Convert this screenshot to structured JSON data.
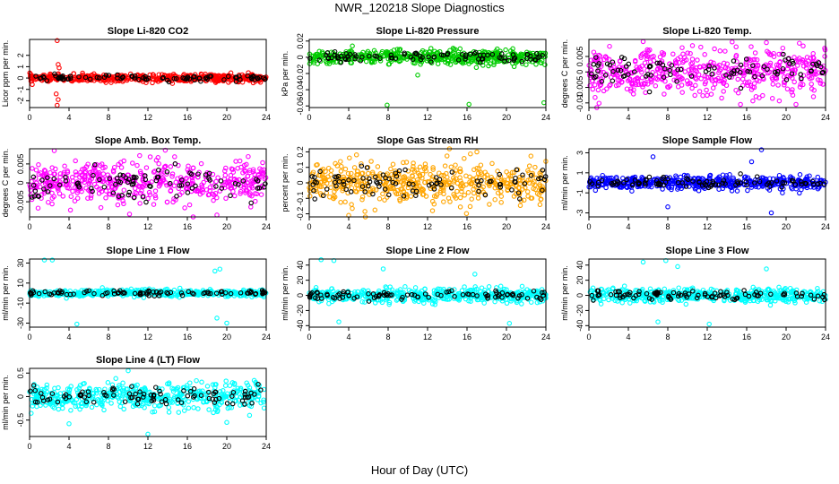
{
  "page": {
    "title": "NWR_120218  Slope Diagnostics",
    "xlabel": "Hour of Day (UTC)"
  },
  "chart_data": [
    {
      "type": "scatter",
      "title": "Slope Li-820 CO2",
      "ylabel": "Licor ppm per min.",
      "color": "#ff0000",
      "xlim": [
        0,
        24
      ],
      "ylim": [
        -2.6,
        3.4
      ],
      "yticks": [
        -2,
        -1,
        0,
        1,
        2
      ],
      "xticks": [
        0,
        4,
        8,
        12,
        16,
        20,
        24
      ],
      "center": 0,
      "spread": 0.3,
      "outliers": [
        [
          2.8,
          3.3
        ],
        [
          2.9,
          1.2
        ],
        [
          3.0,
          0.9
        ],
        [
          2.7,
          -1.4
        ],
        [
          2.8,
          -2.4
        ],
        [
          2.9,
          -1.9
        ]
      ]
    },
    {
      "type": "scatter",
      "title": "Slope Li-820 Pressure",
      "ylabel": "kPa per min.",
      "color": "#00cc00",
      "xlim": [
        0,
        24
      ],
      "ylim": [
        -0.062,
        0.022
      ],
      "yticks": [
        -0.06,
        -0.04,
        -0.02,
        0,
        0.02
      ],
      "xticks": [
        0,
        4,
        8,
        12,
        16,
        20,
        24
      ],
      "center": 0,
      "spread": 0.008,
      "outliers": [
        [
          7.9,
          -0.059
        ],
        [
          16.2,
          -0.058
        ],
        [
          23.8,
          -0.056
        ],
        [
          11.0,
          -0.022
        ]
      ]
    },
    {
      "type": "scatter",
      "title": "Slope Li-820 Temp.",
      "ylabel": "degrees C per min.",
      "color": "#ff00ff",
      "xlim": [
        0,
        24
      ],
      "ylim": [
        -0.0115,
        0.0105
      ],
      "yticks": [
        -0.01,
        -0.005,
        0,
        0.005
      ],
      "xticks": [
        0,
        4,
        8,
        12,
        16,
        20,
        24
      ],
      "center": 0,
      "spread": 0.0065,
      "outliers": [
        [
          5.5,
          0.0098
        ],
        [
          10.5,
          0.0085
        ],
        [
          18.0,
          0.0095
        ],
        [
          21.0,
          -0.0105
        ]
      ]
    },
    {
      "type": "scatter",
      "title": "Slope Amb. Box Temp.",
      "ylabel": "degrees C per min.",
      "color": "#ff00ff",
      "xlim": [
        0,
        24
      ],
      "ylim": [
        -0.009,
        0.009
      ],
      "yticks": [
        -0.005,
        0,
        0.005
      ],
      "xticks": [
        0,
        4,
        8,
        12,
        16,
        20,
        24
      ],
      "center": 0,
      "spread": 0.005,
      "outliers": [
        [
          2.5,
          0.0085
        ],
        [
          19.0,
          -0.0085
        ]
      ]
    },
    {
      "type": "scatter",
      "title": "Slope Gas Stream RH",
      "ylabel": "percent per min.",
      "color": "#ffa500",
      "xlim": [
        0,
        24
      ],
      "ylim": [
        -0.22,
        0.22
      ],
      "yticks": [
        -0.2,
        -0.1,
        0,
        0.1,
        0.2
      ],
      "xticks": [
        0,
        4,
        8,
        12,
        16,
        20,
        24
      ],
      "center": 0,
      "spread": 0.12,
      "outliers": [
        [
          4.0,
          -0.21
        ],
        [
          12.5,
          -0.18
        ],
        [
          17.0,
          0.2
        ]
      ]
    },
    {
      "type": "scatter",
      "title": "Slope Sample Flow",
      "ylabel": "ml/min per min.",
      "color": "#0000ff",
      "xlim": [
        0,
        24
      ],
      "ylim": [
        -3.4,
        3.4
      ],
      "yticks": [
        -3,
        -1,
        1,
        3
      ],
      "xticks": [
        0,
        4,
        8,
        12,
        16,
        20,
        24
      ],
      "center": 0,
      "spread": 0.6,
      "outliers": [
        [
          6.5,
          2.6
        ],
        [
          17.5,
          3.3
        ],
        [
          18.5,
          -3.0
        ],
        [
          8.0,
          -2.4
        ],
        [
          16.5,
          2.1
        ]
      ]
    },
    {
      "type": "scatter",
      "title": "Slope Line 1 Flow",
      "ylabel": "ml/min per min.",
      "color": "#00ffff",
      "xlim": [
        0,
        24
      ],
      "ylim": [
        -34,
        34
      ],
      "yticks": [
        -30,
        -10,
        10,
        30
      ],
      "xticks": [
        0,
        4,
        8,
        12,
        16,
        20,
        24
      ],
      "center": 0,
      "spread": 3,
      "outliers": [
        [
          1.5,
          33
        ],
        [
          2.3,
          33
        ],
        [
          4.8,
          -31
        ],
        [
          19.3,
          24
        ],
        [
          18.8,
          22
        ],
        [
          19.0,
          -25
        ],
        [
          20.0,
          -30
        ]
      ]
    },
    {
      "type": "scatter",
      "title": "Slope Line 2 Flow",
      "ylabel": "ml/min per min.",
      "color": "#00ffff",
      "xlim": [
        0,
        24
      ],
      "ylim": [
        -42,
        48
      ],
      "yticks": [
        -40,
        -20,
        0,
        20,
        40
      ],
      "xticks": [
        0,
        4,
        8,
        12,
        16,
        20,
        24
      ],
      "center": 0,
      "spread": 8,
      "outliers": [
        [
          1.2,
          47
        ],
        [
          2.5,
          46
        ],
        [
          7.5,
          35
        ],
        [
          16.8,
          28
        ],
        [
          20.3,
          -37
        ],
        [
          3.0,
          -35
        ]
      ]
    },
    {
      "type": "scatter",
      "title": "Slope Line 3 Flow",
      "ylabel": "ml/min per min.",
      "color": "#00ffff",
      "xlim": [
        0,
        24
      ],
      "ylim": [
        -42,
        48
      ],
      "yticks": [
        -40,
        -20,
        0,
        20,
        40
      ],
      "xticks": [
        0,
        4,
        8,
        12,
        16,
        20,
        24
      ],
      "center": 0,
      "spread": 8,
      "outliers": [
        [
          5.5,
          44
        ],
        [
          7.8,
          46
        ],
        [
          9.0,
          38
        ],
        [
          12.2,
          -38
        ],
        [
          7.0,
          -35
        ],
        [
          18.0,
          35
        ]
      ]
    },
    {
      "type": "scatter",
      "title": "Slope Line 4 (LT) Flow",
      "ylabel": "ml/min per min.",
      "color": "#00ffff",
      "xlim": [
        0,
        24
      ],
      "ylim": [
        -0.85,
        0.6
      ],
      "yticks": [
        -0.5,
        0,
        0.5
      ],
      "xticks": [
        0,
        4,
        8,
        12,
        16,
        20,
        24
      ],
      "center": 0,
      "spread": 0.25,
      "outliers": [
        [
          12.0,
          -0.8
        ],
        [
          10.0,
          0.55
        ],
        [
          4.0,
          -0.58
        ],
        [
          20.0,
          -0.55
        ]
      ]
    }
  ]
}
